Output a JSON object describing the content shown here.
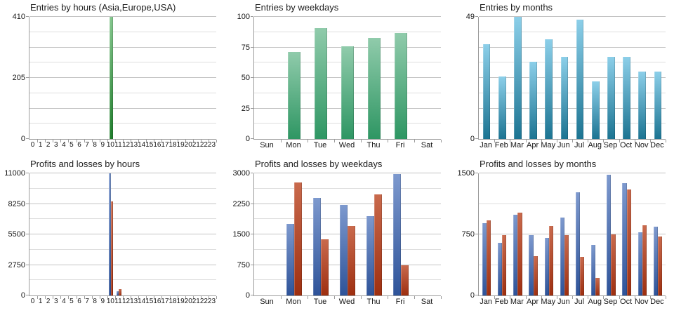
{
  "page": {
    "background": "#ffffff",
    "gridline_major_color": "#c3c3c3",
    "gridline_minor_color": "#dedede",
    "axis_color": "#9b9b9b",
    "text_color": "#1e1e1e"
  },
  "chart_data": [
    {
      "type": "bar",
      "title": "Entries by hours (Asia,Europe,USA)",
      "categories": [
        "0",
        "1",
        "2",
        "3",
        "4",
        "5",
        "6",
        "7",
        "8",
        "9",
        "10",
        "11",
        "12",
        "13",
        "14",
        "15",
        "16",
        "17",
        "18",
        "19",
        "20",
        "21",
        "22",
        "23"
      ],
      "values": [
        0,
        0,
        0,
        0,
        0,
        0,
        0,
        0,
        0,
        0,
        410,
        0,
        0,
        0,
        0,
        0,
        0,
        0,
        0,
        0,
        0,
        0,
        0,
        0
      ],
      "bar_gradient": [
        "#85c78e",
        "#1f7d2b"
      ],
      "ylim": [
        0,
        410
      ],
      "y_axis": {
        "max": 410,
        "divisions": 8,
        "labels": [
          "410",
          "205",
          "0"
        ]
      },
      "grid": true,
      "legend": "none"
    },
    {
      "type": "bar",
      "title": "Entries by weekdays",
      "categories": [
        "Sun",
        "Mon",
        "Tue",
        "Wed",
        "Thu",
        "Fri",
        "Sat"
      ],
      "values": [
        0,
        71,
        91,
        76,
        83,
        87,
        0
      ],
      "bar_gradient": [
        "#90cbab",
        "#2e9663"
      ],
      "ylim": [
        0,
        100
      ],
      "y_axis": {
        "max": 100,
        "divisions": 8,
        "labels": [
          "100",
          "75",
          "50",
          "25",
          "0"
        ]
      },
      "grid": true,
      "legend": "none"
    },
    {
      "type": "bar",
      "title": "Entries by months",
      "categories": [
        "Jan",
        "Feb",
        "Mar",
        "Apr",
        "May",
        "Jun",
        "Jul",
        "Aug",
        "Sep",
        "Oct",
        "Nov",
        "Dec"
      ],
      "values": [
        38,
        25,
        49,
        31,
        40,
        33,
        48,
        23,
        33,
        33,
        27,
        27
      ],
      "bar_gradient": [
        "#8ccfe9",
        "#1c7492"
      ],
      "ylim": [
        0,
        49
      ],
      "y_axis": {
        "max": 49,
        "divisions": 8,
        "labels": [
          "49",
          "0"
        ]
      },
      "grid": true,
      "legend": "none"
    },
    {
      "type": "bar",
      "title": "Profits and losses by hours",
      "categories": [
        "0",
        "1",
        "2",
        "3",
        "4",
        "5",
        "6",
        "7",
        "8",
        "9",
        "10",
        "11",
        "12",
        "13",
        "14",
        "15",
        "16",
        "17",
        "18",
        "19",
        "20",
        "21",
        "22",
        "23"
      ],
      "series": [
        {
          "name": "blue",
          "gradient": [
            "#7d99ce",
            "#2e5399"
          ],
          "values": [
            0,
            0,
            0,
            0,
            0,
            0,
            0,
            0,
            0,
            0,
            11000,
            350,
            0,
            0,
            0,
            0,
            0,
            0,
            0,
            0,
            0,
            0,
            0,
            0
          ]
        },
        {
          "name": "red",
          "gradient": [
            "#c96a4d",
            "#9e2f10"
          ],
          "values": [
            0,
            0,
            0,
            0,
            0,
            0,
            0,
            0,
            0,
            0,
            8470,
            600,
            0,
            0,
            0,
            0,
            0,
            0,
            0,
            0,
            0,
            0,
            0,
            0
          ]
        }
      ],
      "ylim": [
        0,
        11000
      ],
      "y_axis": {
        "max": 11000,
        "divisions": 8,
        "labels": [
          "11000",
          "8250",
          "5500",
          "2750",
          "0"
        ]
      },
      "grid": true,
      "legend": "none"
    },
    {
      "type": "bar",
      "title": "Profits and losses by weekdays",
      "categories": [
        "Sun",
        "Mon",
        "Tue",
        "Wed",
        "Thu",
        "Fri",
        "Sat"
      ],
      "series": [
        {
          "name": "blue",
          "gradient": [
            "#7d99ce",
            "#2e5399"
          ],
          "values": [
            0,
            1760,
            2400,
            2230,
            1940,
            2990,
            0
          ]
        },
        {
          "name": "red",
          "gradient": [
            "#c96a4d",
            "#9e2f10"
          ],
          "values": [
            0,
            2780,
            1380,
            1700,
            2480,
            740,
            0
          ]
        }
      ],
      "ylim": [
        0,
        3000
      ],
      "y_axis": {
        "max": 3000,
        "divisions": 8,
        "labels": [
          "3000",
          "2250",
          "1500",
          "750",
          "0"
        ]
      },
      "grid": true,
      "legend": "none"
    },
    {
      "type": "bar",
      "title": "Profits and losses by months",
      "categories": [
        "Jan",
        "Feb",
        "Mar",
        "Apr",
        "May",
        "Jun",
        "Jul",
        "Aug",
        "Sep",
        "Oct",
        "Nov",
        "Dec"
      ],
      "series": [
        {
          "name": "blue",
          "gradient": [
            "#7d99ce",
            "#2e5399"
          ],
          "values": [
            890,
            650,
            990,
            745,
            710,
            955,
            1270,
            620,
            1480,
            1380,
            780,
            845
          ]
        },
        {
          "name": "red",
          "gradient": [
            "#c96a4d",
            "#9e2f10"
          ],
          "values": [
            920,
            745,
            1020,
            480,
            855,
            745,
            470,
            215,
            750,
            1300,
            860,
            725
          ]
        }
      ],
      "ylim": [
        0,
        1500
      ],
      "y_axis": {
        "max": 1500,
        "divisions": 4,
        "labels": [
          "1500",
          "750",
          "0"
        ]
      },
      "grid": true,
      "legend": "none"
    }
  ]
}
